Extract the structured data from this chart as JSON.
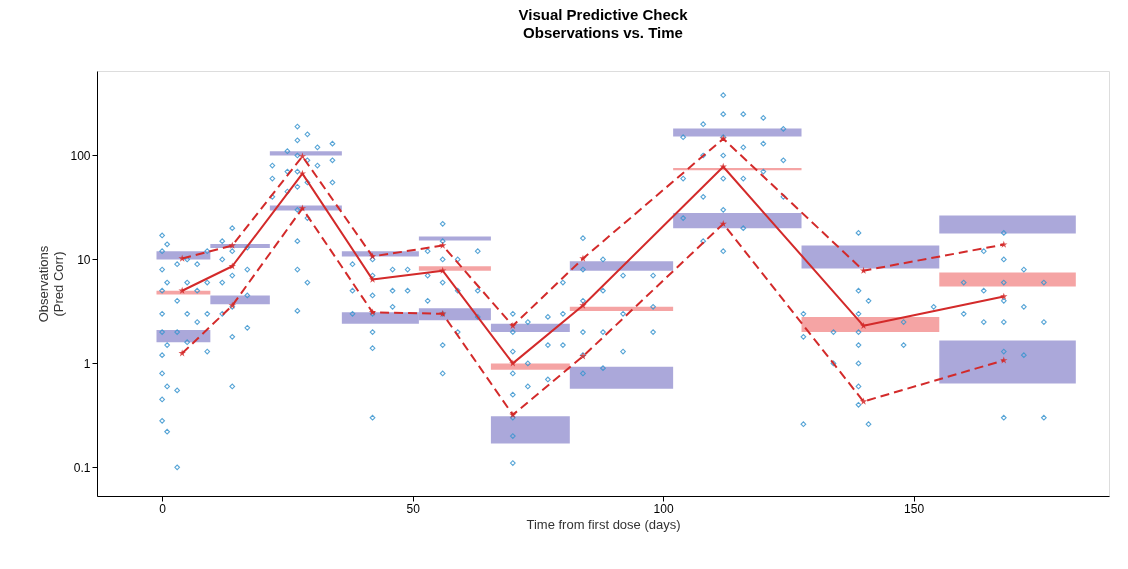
{
  "chart_data": {
    "type": "scatter",
    "title": "Visual Predictive Check",
    "subtitle": "Observations vs. Time",
    "xlabel": "Time from first dose (days)",
    "ylabel": "Observations\n(Pred Corr)",
    "log": "y",
    "xlim": [
      -13,
      189
    ],
    "ylim": [
      0.053,
      650
    ],
    "xticks": [
      0,
      50,
      100,
      150
    ],
    "yticks": [
      0.1,
      1,
      10,
      100
    ],
    "grid": false,
    "series": [
      {
        "type": "bar",
        "color": "#aba8da",
        "x": [
          4.25,
          15,
          28,
          43.75,
          58.75,
          72.5,
          90.25,
          113.75,
          141.5,
          168.75
        ],
        "base": [
          10.0,
          12.9,
          100,
          10.7,
          15.2,
          2.0,
          7.8,
          152,
          8.2,
          17.8
        ],
        "values": [
          2.0,
          1.2,
          10,
          1.3,
          1.4,
          0.4,
          1.8,
          30,
          5.4,
          8.7
        ]
      },
      {
        "type": "bar",
        "color": "#f5a4a4",
        "x": [
          4.25,
          15,
          28,
          43.75,
          58.75,
          72.5,
          90.25,
          113.75,
          141.5,
          168.75
        ],
        "base": [
          4.6,
          null,
          null,
          null,
          7.8,
          0.87,
          3.2,
          72,
          2.0,
          5.5
        ],
        "values": [
          0.4,
          null,
          null,
          null,
          0.8,
          0.13,
          0.3,
          4,
          0.8,
          2.0
        ]
      },
      {
        "type": "bar",
        "color": "#aba8da",
        "x": [
          4.25,
          15,
          28,
          43.75,
          58.75,
          72.5,
          90.25,
          113.75,
          141.5,
          168.75
        ],
        "base": [
          1.6,
          3.7,
          29.5,
          2.4,
          2.6,
          0.17,
          0.57,
          20,
          null,
          0.64
        ],
        "values": [
          0.5,
          0.8,
          3.5,
          0.7,
          0.8,
          0.14,
          0.36,
          8,
          null,
          1.02
        ]
      },
      {
        "color": "#3a95cf",
        "marker": "diamond",
        "x": [
          0,
          0,
          0,
          0,
          0,
          0,
          0,
          0,
          0,
          0,
          1,
          1,
          1,
          1,
          1,
          3,
          3,
          3,
          3,
          3,
          5,
          5,
          5,
          5,
          7,
          7,
          7,
          9,
          9,
          9,
          9,
          12,
          12,
          12,
          12,
          14,
          14,
          14,
          14,
          14,
          14,
          17,
          17,
          17,
          17,
          22,
          22,
          22,
          25,
          25,
          25,
          27,
          27,
          27,
          27,
          27,
          27,
          27,
          27,
          27,
          29,
          29,
          29,
          29,
          29,
          31,
          31,
          34,
          34,
          34,
          38,
          38,
          38,
          42,
          42,
          42,
          42,
          42,
          42,
          42,
          46,
          46,
          46,
          49,
          49,
          53,
          53,
          53,
          56,
          56,
          56,
          56,
          56,
          56,
          56,
          59,
          59,
          59,
          63,
          63,
          63,
          70,
          70,
          70,
          70,
          70,
          70,
          70,
          70,
          73,
          73,
          73,
          77,
          77,
          77,
          80,
          80,
          80,
          84,
          84,
          84,
          84,
          84,
          84,
          88,
          88,
          88,
          88,
          92,
          92,
          92,
          98,
          98,
          98,
          104,
          104,
          104,
          108,
          108,
          108,
          108,
          112,
          112,
          112,
          112,
          112,
          112,
          112,
          116,
          116,
          116,
          116,
          120,
          120,
          120,
          124,
          124,
          124,
          128,
          128,
          128,
          134,
          134,
          139,
          139,
          139,
          139,
          139,
          139,
          139,
          139,
          141,
          141,
          148,
          148,
          154,
          160,
          160,
          164,
          164,
          164,
          168,
          168,
          168,
          168,
          168,
          168,
          168,
          172,
          172,
          172,
          176,
          176,
          176
        ],
        "values": [
          17,
          12,
          8,
          5,
          3,
          2,
          1.2,
          0.8,
          0.45,
          0.28,
          14,
          6,
          1.5,
          0.6,
          0.22,
          0.1,
          0.55,
          9,
          4,
          2,
          10,
          6,
          3,
          1.6,
          9,
          5,
          2.5,
          12,
          6,
          3,
          1.3,
          15,
          10,
          6,
          3,
          20,
          12,
          7,
          3.5,
          1.8,
          0.6,
          13,
          8,
          4.5,
          2.2,
          80,
          60,
          40,
          110,
          70,
          45,
          190,
          140,
          100,
          70,
          50,
          30,
          15,
          8,
          3.2,
          160,
          90,
          55,
          25,
          6,
          120,
          80,
          130,
          90,
          55,
          9,
          5,
          3,
          10,
          7,
          4.5,
          3,
          2,
          1.4,
          0.3,
          8,
          5,
          3.5,
          8,
          5,
          12,
          7,
          4,
          22,
          15,
          10,
          6,
          3,
          1.5,
          0.8,
          10,
          5,
          2,
          12,
          5,
          2.8,
          3,
          2,
          1.3,
          0.8,
          0.5,
          0.3,
          0.2,
          0.11,
          2.5,
          1,
          0.6,
          2.8,
          1.5,
          0.7,
          6,
          3,
          1.5,
          16,
          8,
          4,
          2,
          1.2,
          0.8,
          10,
          5,
          2,
          0.9,
          7,
          3,
          1.3,
          7,
          3.5,
          2,
          150,
          60,
          25,
          200,
          100,
          40,
          15,
          380,
          250,
          150,
          100,
          60,
          30,
          12,
          250,
          120,
          60,
          20,
          230,
          130,
          70,
          180,
          90,
          40,
          3,
          1.8,
          0.26,
          2,
          1,
          18,
          5,
          3,
          2,
          1.5,
          1,
          0.6,
          0.4,
          0.26,
          4,
          2.5,
          1.5,
          3.5,
          6,
          3,
          12,
          5,
          2.5,
          18,
          10,
          6,
          4,
          2.5,
          1.3,
          0.3,
          8,
          3.5,
          1.2,
          6,
          2.5,
          0.3
        ]
      },
      {
        "type": "line",
        "color": "#d32a2a",
        "line_style": "dashed",
        "marker": "star",
        "x": [
          4,
          14,
          28,
          42,
          56,
          70,
          84,
          112,
          140,
          168
        ],
        "values": [
          10.2,
          13.6,
          98,
          10.7,
          13.6,
          2.3,
          10.2,
          145,
          7.8,
          13.9
        ]
      },
      {
        "type": "line",
        "color": "#d32a2a",
        "line_style": "solid",
        "marker": "star",
        "x": [
          4,
          14,
          28,
          42,
          56,
          70,
          84,
          112,
          140,
          168
        ],
        "values": [
          5.0,
          8.6,
          67,
          6.4,
          7.8,
          1.0,
          3.6,
          78,
          2.3,
          4.4
        ]
      },
      {
        "type": "line",
        "color": "#d32a2a",
        "line_style": "dashed",
        "marker": "star",
        "x": [
          4,
          14,
          28,
          42,
          56,
          70,
          84,
          112,
          140,
          168
        ],
        "values": [
          1.25,
          3.6,
          31,
          3.1,
          3.0,
          0.32,
          1.17,
          22,
          0.43,
          1.07
        ]
      }
    ]
  }
}
